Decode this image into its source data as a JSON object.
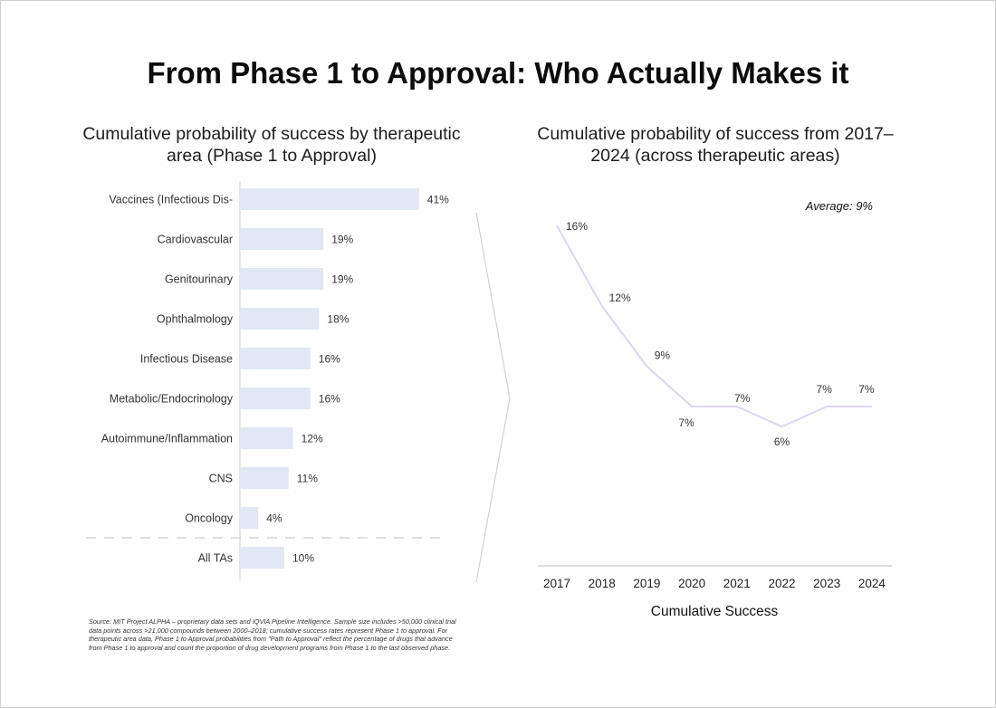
{
  "title": "From Phase 1 to Approval: Who Actually Makes it",
  "chart_data": [
    {
      "type": "bar",
      "orientation": "horizontal",
      "title": "Cumulative probability of success by therapeutic area (Phase 1 to Approval)",
      "categories": [
        "Vaccines (Infectious Dis-",
        "Cardiovascular",
        "Genitourinary",
        "Ophthalmology",
        "Infectious Disease",
        "Metabolic/Endocrinology",
        "Autoimmune/Inflammation",
        "CNS",
        "Oncology",
        "All TAs"
      ],
      "values": [
        41,
        19,
        19,
        18,
        16,
        16,
        12,
        11,
        4,
        10
      ],
      "labels": [
        "41%",
        "19%",
        "19%",
        "18%",
        "16%",
        "16%",
        "12%",
        "11%",
        "4%",
        "10%"
      ],
      "bar_color": "#e1e7f3",
      "separator_before": "All TAs"
    },
    {
      "type": "line",
      "title": "Cumulative probability of success from 2017–2024 (across therapeutic areas)",
      "x": [
        "2017",
        "2018",
        "2019",
        "2020",
        "2021",
        "2022",
        "2023",
        "2024"
      ],
      "values": [
        16,
        12,
        9,
        7,
        7,
        6,
        7,
        7
      ],
      "labels": [
        "16%",
        "12%",
        "9%",
        "7%",
        "7%",
        "6%",
        "7%",
        "7%"
      ],
      "xlabel": "Cumulative Success",
      "annotation": "Average: 9%",
      "line_color": "#ddd6ee"
    }
  ],
  "source": "Source: MIT Project ALPHA – proprietary data sets and IQVIA Pipeline Intelligence. Sample size includes >50,000 clinical trial data points across >21,000 compounds between 2000–2018; cumulative success rates represent Phase 1 to approval. For therapeutic area data, Phase 1 to Approval probabilities from \"Path to Approval\" reflect the percentage of drugs that advance from Phase 1 to approval and count the proportion of drug development programs from Phase 1 to the last observed phase."
}
